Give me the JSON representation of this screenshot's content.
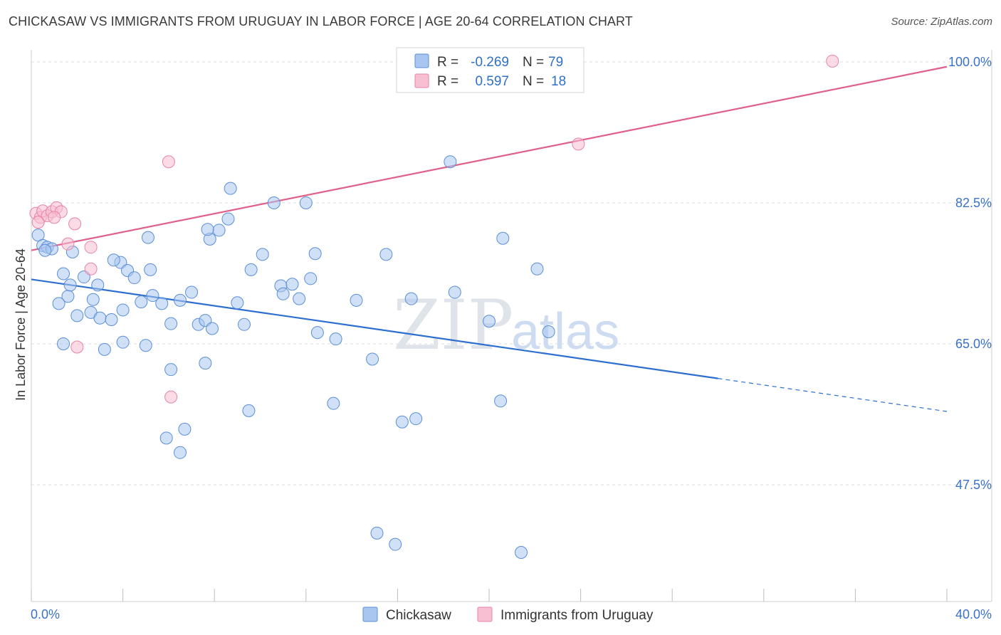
{
  "title": "CHICKASAW VS IMMIGRANTS FROM URUGUAY IN LABOR FORCE | AGE 20-64 CORRELATION CHART",
  "source": "Source: ZipAtlas.com",
  "watermark": {
    "zip": "ZIP",
    "atlas": "atlas"
  },
  "chart_data": {
    "type": "scatter",
    "title": "CHICKASAW VS IMMIGRANTS FROM URUGUAY IN LABOR FORCE | AGE 20-64 CORRELATION CHART",
    "xlabel": "",
    "ylabel": "In Labor Force | Age 20-64",
    "xlim": [
      0,
      40
    ],
    "ylim": [
      33,
      101.5
    ],
    "x_tick_labels": [
      "0.0%",
      "40.0%"
    ],
    "y_ticks": [
      {
        "value": 100.0,
        "label": "100.0%"
      },
      {
        "value": 82.5,
        "label": "82.5%"
      },
      {
        "value": 65.0,
        "label": "65.0%"
      },
      {
        "value": 47.5,
        "label": "47.5%"
      }
    ],
    "legend_top": [
      {
        "r_label": "R =",
        "r_value": "-0.269",
        "n_label": "N =",
        "n_value": "79"
      },
      {
        "r_label": "R =",
        "r_value": "0.597",
        "n_label": "N =",
        "n_value": "18"
      }
    ],
    "series": [
      {
        "name": "Chickasaw",
        "color": "#a9c6f0",
        "edge": "#5b8fd6",
        "line_color": "#2d6fd0",
        "trend": {
          "x0": 0,
          "y0": 73.0,
          "x1": 30.0,
          "y1": 60.7,
          "dash_to_x": 40.0,
          "dash_to_y": 56.6
        },
        "points": [
          [
            0.3,
            78.5
          ],
          [
            0.5,
            77.2
          ],
          [
            0.7,
            77.0
          ],
          [
            0.9,
            76.8
          ],
          [
            0.6,
            76.6
          ],
          [
            1.8,
            76.4
          ],
          [
            1.4,
            73.7
          ],
          [
            2.3,
            73.3
          ],
          [
            2.9,
            72.3
          ],
          [
            1.6,
            70.9
          ],
          [
            2.7,
            70.5
          ],
          [
            2.6,
            68.9
          ],
          [
            3.0,
            68.2
          ],
          [
            3.9,
            75.1
          ],
          [
            3.6,
            75.4
          ],
          [
            4.2,
            74.1
          ],
          [
            4.5,
            73.2
          ],
          [
            4.0,
            69.2
          ],
          [
            3.5,
            68.0
          ],
          [
            4.8,
            70.2
          ],
          [
            5.2,
            74.2
          ],
          [
            5.1,
            78.2
          ],
          [
            5.7,
            70.0
          ],
          [
            6.1,
            67.5
          ],
          [
            6.5,
            70.4
          ],
          [
            7.0,
            71.4
          ],
          [
            7.3,
            67.4
          ],
          [
            7.6,
            67.9
          ],
          [
            7.9,
            66.9
          ],
          [
            8.2,
            79.1
          ],
          [
            8.6,
            80.5
          ],
          [
            8.7,
            84.3
          ],
          [
            9.0,
            70.1
          ],
          [
            9.3,
            67.4
          ],
          [
            9.6,
            74.2
          ],
          [
            10.1,
            76.1
          ],
          [
            10.6,
            82.5
          ],
          [
            10.9,
            72.2
          ],
          [
            11.0,
            71.2
          ],
          [
            11.4,
            72.4
          ],
          [
            11.7,
            70.6
          ],
          [
            12.0,
            82.5
          ],
          [
            12.2,
            73.1
          ],
          [
            12.4,
            76.2
          ],
          [
            7.8,
            78.0
          ],
          [
            12.5,
            66.4
          ],
          [
            13.3,
            65.6
          ],
          [
            14.2,
            70.4
          ],
          [
            14.9,
            63.1
          ],
          [
            15.5,
            76.1
          ],
          [
            16.6,
            70.6
          ],
          [
            18.3,
            87.6
          ],
          [
            18.5,
            71.4
          ],
          [
            20.0,
            67.8
          ],
          [
            20.6,
            78.1
          ],
          [
            22.1,
            74.3
          ],
          [
            22.6,
            66.5
          ],
          [
            1.4,
            65.0
          ],
          [
            3.2,
            64.3
          ],
          [
            4.0,
            65.2
          ],
          [
            5.0,
            64.8
          ],
          [
            6.1,
            61.8
          ],
          [
            7.6,
            62.6
          ],
          [
            9.5,
            56.7
          ],
          [
            13.2,
            57.6
          ],
          [
            16.2,
            55.3
          ],
          [
            16.8,
            55.7
          ],
          [
            20.5,
            57.9
          ],
          [
            5.9,
            53.3
          ],
          [
            6.5,
            51.5
          ],
          [
            6.7,
            54.4
          ],
          [
            15.1,
            41.5
          ],
          [
            15.9,
            40.1
          ],
          [
            21.4,
            39.1
          ],
          [
            7.7,
            79.2
          ],
          [
            1.7,
            72.3
          ],
          [
            1.2,
            70.0
          ],
          [
            2.0,
            68.5
          ],
          [
            5.3,
            71.0
          ]
        ]
      },
      {
        "name": "Immigrants from Uruguay",
        "color": "#f7bfd1",
        "edge": "#e784a6",
        "line_color": "#e0608a",
        "trend": {
          "x0": 0,
          "y0": 76.6,
          "x1": 40.0,
          "y1": 99.4
        },
        "points": [
          [
            0.2,
            81.2
          ],
          [
            0.4,
            80.7
          ],
          [
            0.5,
            81.5
          ],
          [
            0.7,
            80.9
          ],
          [
            0.9,
            81.4
          ],
          [
            1.1,
            81.9
          ],
          [
            1.3,
            81.4
          ],
          [
            1.9,
            79.9
          ],
          [
            1.6,
            77.4
          ],
          [
            2.6,
            77.0
          ],
          [
            2.6,
            74.3
          ],
          [
            2.0,
            64.6
          ],
          [
            6.0,
            87.6
          ],
          [
            6.1,
            58.4
          ],
          [
            23.9,
            89.8
          ],
          [
            35.0,
            100.1
          ],
          [
            0.3,
            80.1
          ],
          [
            1.0,
            80.7
          ]
        ]
      }
    ]
  }
}
